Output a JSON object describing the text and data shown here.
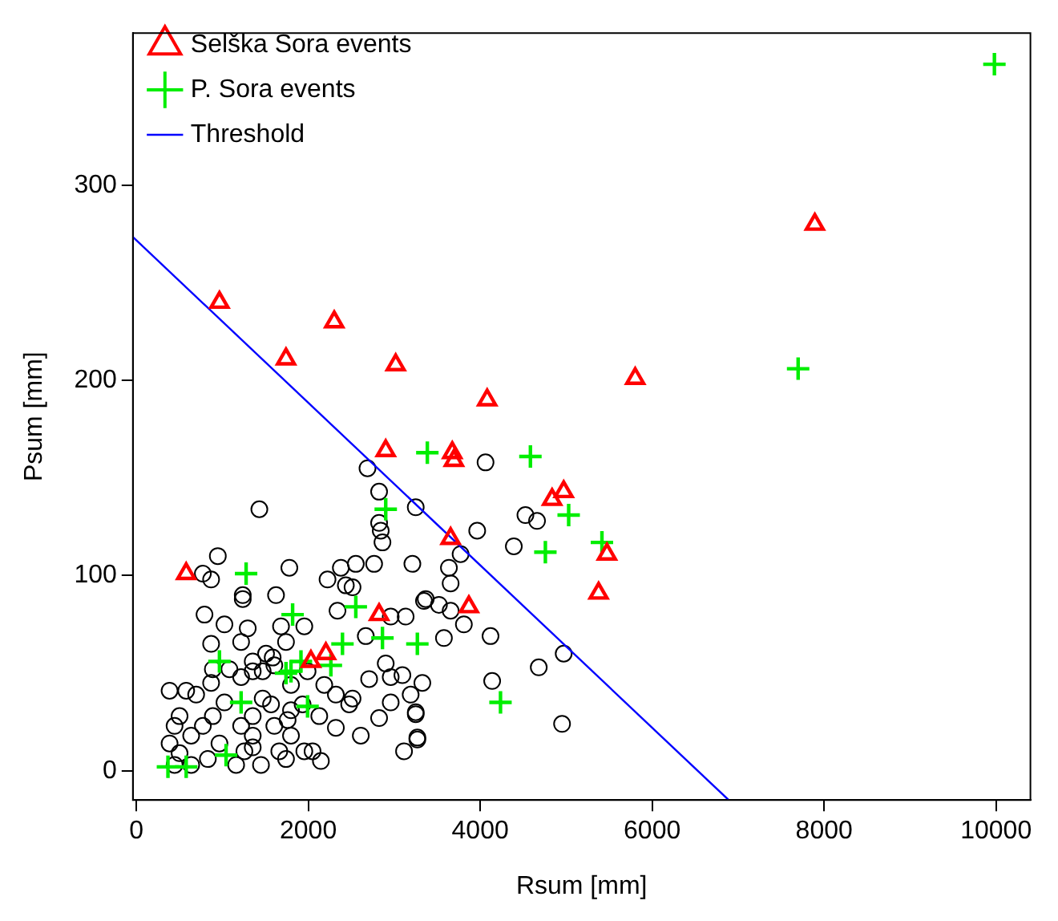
{
  "chart_data": {
    "type": "scatter",
    "xlabel": "Rsum [mm]",
    "ylabel": "Psum [mm]",
    "xlim": [
      -40,
      10400
    ],
    "ylim": [
      -15,
      378
    ],
    "xticks": [
      0,
      2000,
      4000,
      6000,
      8000,
      10000
    ],
    "yticks": [
      0,
      100,
      200,
      300
    ],
    "grid": false,
    "legend": "top left",
    "series": [
      {
        "name": "Selška Sora events",
        "color": "#ff0000",
        "marker": "triangle",
        "x": [
          967,
          1741,
          2302,
          3017,
          4081,
          5803,
          7892,
          2901,
          3675,
          3694,
          3656,
          3868,
          4836,
          4971,
          5474,
          5377,
          580,
          2824,
          2205,
          2031
        ],
        "values": [
          240,
          211,
          230,
          208,
          190,
          201,
          280,
          164,
          163,
          159,
          119,
          84,
          139,
          143,
          111,
          91,
          101,
          80,
          60,
          56
        ]
      },
      {
        "name": "P. Sora events",
        "color": "#00ee00",
        "marker": "cross",
        "x": [
          9981,
          7698,
          3385,
          4584,
          5029,
          5416,
          4758,
          4236,
          3269,
          2863,
          2901,
          2553,
          1277,
          1818,
          2398,
          2263,
          1915,
          1799,
          1741,
          967,
          1219,
          1992,
          1044,
          368,
          580
        ],
        "values": [
          362,
          206,
          163,
          161,
          131,
          117,
          112,
          35,
          65,
          68,
          134,
          84,
          101,
          80,
          65,
          54,
          56,
          51,
          50,
          56,
          35,
          33,
          8,
          2,
          2
        ]
      },
      {
        "name": "Threshold",
        "type": "line",
        "color": "#0000ff",
        "marker": "none",
        "x": [
          -40,
          6890
        ],
        "values": [
          273.5,
          -15
        ]
      },
      {
        "color": "#000000",
        "marker": "circle",
        "x": [
          1431,
          2689,
          2824,
          2824,
          2843,
          2863,
          3250,
          948,
          774,
          870,
          1780,
          1238,
          1238,
          1625,
          2224,
          2379,
          2437,
          2515,
          2553,
          2766,
          3211,
          793,
          1025,
          1296,
          1683,
          1954,
          2340,
          2669,
          2959,
          3133,
          870,
          1219,
          1741,
          1509,
          1354,
          1586,
          2901,
          2959,
          2708,
          3095,
          3191,
          387,
          580,
          696,
          870,
          890,
          1083,
          1354,
          1219,
          1470,
          1605,
          1799,
          1992,
          2186,
          2321,
          2515,
          2476,
          2611,
          2824,
          2321,
          2128,
          2147,
          2050,
          1954,
          1799,
          1605,
          1663,
          1450,
          1354,
          1161,
          967,
          890,
          1025,
          774,
          638,
          503,
          445,
          387,
          503,
          638,
          832,
          445,
          1354,
          1470,
          1567,
          1799,
          1934,
          1219,
          1354,
          1257,
          1741,
          1760,
          3346,
          3250,
          3269,
          3114,
          2959,
          4062,
          4526,
          4661,
          3965,
          4391,
          3772,
          3636,
          3656,
          3366,
          3520,
          3656,
          3810,
          4120,
          3578,
          4971,
          4681,
          3327,
          4139,
          3250,
          3269,
          4952
        ],
        "values": [
          134,
          155,
          143,
          127,
          123,
          117,
          135,
          110,
          101,
          98,
          104,
          90,
          88,
          90,
          98,
          104,
          95,
          94,
          106,
          106,
          106,
          80,
          75,
          73,
          74,
          74,
          82,
          69,
          79,
          79,
          65,
          66,
          66,
          60,
          51,
          58,
          55,
          48,
          47,
          49,
          39,
          41,
          41,
          39,
          45,
          52,
          52,
          56,
          48,
          51,
          54,
          44,
          51,
          44,
          39,
          37,
          34,
          18,
          27,
          22,
          28,
          5,
          10,
          10,
          18,
          23,
          10,
          3,
          12,
          3,
          14,
          28,
          35,
          23,
          18,
          28,
          23,
          14,
          9,
          3,
          6,
          3,
          28,
          37,
          34,
          31,
          34,
          23,
          18,
          10,
          6,
          26,
          87,
          30,
          16,
          10,
          35,
          158,
          131,
          128,
          123,
          115,
          111,
          104,
          96,
          88,
          85,
          82,
          75,
          69,
          68,
          60,
          53,
          45,
          46,
          29,
          17,
          24
        ]
      }
    ]
  }
}
